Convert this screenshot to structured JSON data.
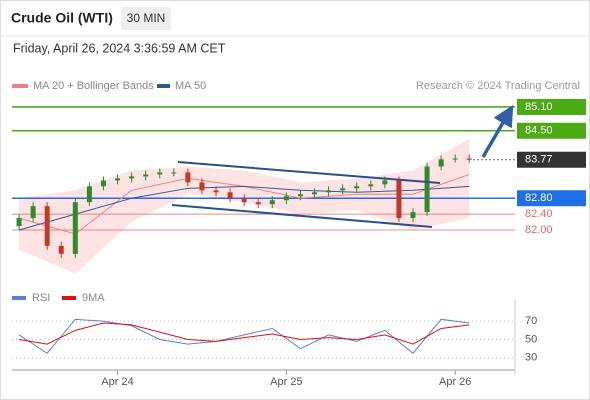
{
  "header": {
    "title": "Crude Oil (WTI)",
    "interval": "30 MIN",
    "timestamp": "Friday, April 26, 2024 3:36:59 AM CET"
  },
  "chart_data": [
    {
      "type": "candlestick",
      "source": "Research © 2024 Trading Central",
      "xlim": [
        9,
        80.5
      ],
      "ylim": [
        80.7,
        85.3
      ],
      "up_color": "#2e8b2e",
      "down_color": "#c0392b",
      "x": [
        10,
        12,
        14,
        16,
        18,
        20,
        22,
        24,
        26,
        28,
        30,
        32,
        34,
        36,
        38,
        40,
        42,
        44,
        46,
        48,
        50,
        52,
        54,
        56,
        58,
        60,
        62,
        64,
        66,
        68,
        70,
        72,
        74
      ],
      "open": [
        82.1,
        82.3,
        82.6,
        81.6,
        81.4,
        82.7,
        83.1,
        83.25,
        83.3,
        83.35,
        83.4,
        83.45,
        83.45,
        83.2,
        83.0,
        82.95,
        82.8,
        82.7,
        82.65,
        82.75,
        82.85,
        82.9,
        82.95,
        83.0,
        83.05,
        83.1,
        83.15,
        83.25,
        82.3,
        82.45,
        83.6,
        83.78,
        83.8
      ],
      "high": [
        82.4,
        82.7,
        82.7,
        81.7,
        82.8,
        83.2,
        83.35,
        83.4,
        83.45,
        83.5,
        83.55,
        83.55,
        83.55,
        83.3,
        83.1,
        83.05,
        82.9,
        82.8,
        82.85,
        82.95,
        83.0,
        83.05,
        83.1,
        83.15,
        83.2,
        83.25,
        83.35,
        83.35,
        82.55,
        83.7,
        83.88,
        83.9,
        83.9
      ],
      "low": [
        82.0,
        82.2,
        81.5,
        81.3,
        81.3,
        82.6,
        83.0,
        83.15,
        83.2,
        83.25,
        83.3,
        83.35,
        83.1,
        82.9,
        82.85,
        82.7,
        82.6,
        82.55,
        82.55,
        82.65,
        82.75,
        82.8,
        82.85,
        82.9,
        82.95,
        83.0,
        83.05,
        82.2,
        82.2,
        82.35,
        83.5,
        83.7,
        83.7
      ],
      "close": [
        82.3,
        82.6,
        81.6,
        81.4,
        82.7,
        83.1,
        83.25,
        83.3,
        83.35,
        83.4,
        83.45,
        83.45,
        83.2,
        83.0,
        82.95,
        82.8,
        82.7,
        82.65,
        82.75,
        82.85,
        82.9,
        82.95,
        83.0,
        83.05,
        83.1,
        83.15,
        83.25,
        82.3,
        82.45,
        83.6,
        83.78,
        83.8,
        83.77
      ],
      "series": [
        {
          "name": "MA 20 + Bollinger Bands",
          "color": "#f08080",
          "band_color": "#fde3e3",
          "x": [
            10,
            18,
            26,
            34,
            42,
            50,
            58,
            66,
            74
          ],
          "values": [
            82.3,
            81.9,
            83.0,
            83.3,
            83.1,
            82.8,
            82.9,
            82.9,
            83.4
          ],
          "upper": [
            82.8,
            83.0,
            83.5,
            83.6,
            83.5,
            83.2,
            83.3,
            83.5,
            84.3
          ],
          "lower": [
            81.5,
            80.9,
            82.2,
            82.9,
            82.7,
            82.4,
            82.5,
            82.0,
            82.3
          ]
        },
        {
          "name": "MA 50",
          "color": "#2d5a9a",
          "x": [
            10,
            18,
            26,
            34,
            42,
            50,
            58,
            66,
            74
          ],
          "values": [
            82.0,
            82.4,
            82.8,
            83.05,
            83.1,
            83.0,
            82.95,
            83.0,
            83.1
          ]
        }
      ],
      "levels": [
        {
          "value": 85.1,
          "label": "85.10",
          "color": "#4caa14",
          "style": "box"
        },
        {
          "value": 84.5,
          "label": "84.50",
          "color": "#4caa14",
          "style": "box"
        },
        {
          "value": 83.77,
          "label": "83.77",
          "color": "#333333",
          "style": "dotted"
        },
        {
          "value": 82.8,
          "label": "82.80",
          "color": "#1e6fe8",
          "style": "box"
        },
        {
          "value": 82.4,
          "label": "82.40",
          "color": "#e06666",
          "style": "text"
        },
        {
          "value": 82.0,
          "label": "82.00",
          "color": "#e06666",
          "style": "text"
        }
      ]
    },
    {
      "type": "line",
      "xlim": [
        9,
        80.5
      ],
      "ylim": [
        20,
        80
      ],
      "yticks": [
        70,
        50,
        30
      ],
      "xticks": [
        {
          "value": 24,
          "label": "Apr 24"
        },
        {
          "value": 48,
          "label": "Apr 25"
        },
        {
          "value": 72,
          "label": "Apr 26"
        }
      ],
      "series": [
        {
          "name": "RSI",
          "color": "#5b7fd6",
          "x": [
            10,
            14,
            18,
            22,
            26,
            30,
            34,
            38,
            42,
            46,
            50,
            54,
            58,
            62,
            66,
            70,
            74
          ],
          "values": [
            55,
            35,
            72,
            70,
            65,
            50,
            45,
            48,
            55,
            62,
            40,
            55,
            48,
            60,
            35,
            72,
            68
          ]
        },
        {
          "name": "9MA",
          "color": "#e01010",
          "x": [
            10,
            14,
            18,
            22,
            26,
            30,
            34,
            38,
            42,
            46,
            50,
            54,
            58,
            62,
            66,
            70,
            74
          ],
          "values": [
            50,
            45,
            60,
            68,
            66,
            58,
            50,
            48,
            52,
            56,
            50,
            52,
            50,
            55,
            45,
            62,
            66
          ]
        }
      ]
    }
  ]
}
